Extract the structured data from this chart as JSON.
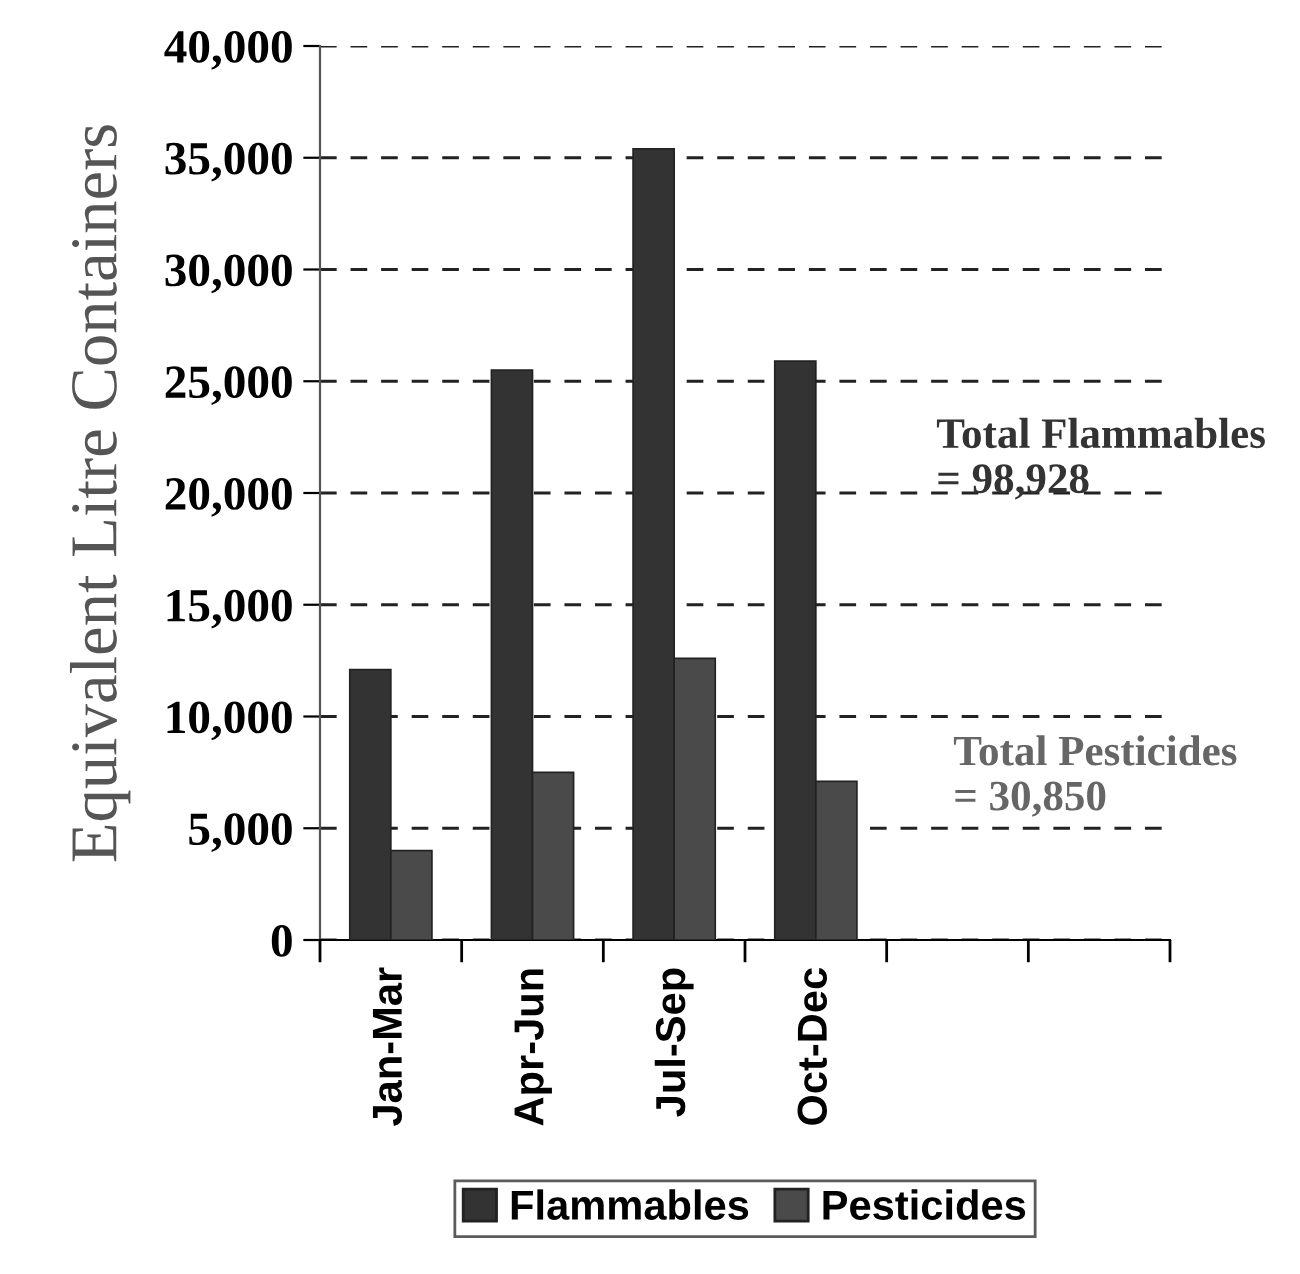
{
  "chart_data": {
    "type": "bar",
    "ylabel": "Equivalent Litre Containers",
    "categories": [
      "Jan-Mar",
      "Apr-Jun",
      "Jul-Sep",
      "Oct-Dec",
      null,
      null
    ],
    "series": [
      {
        "name": "Flammables",
        "color": "#333333",
        "values": [
          12100,
          25500,
          35400,
          25900,
          null,
          null
        ]
      },
      {
        "name": "Pesticides",
        "color": "#4a4a4a",
        "values": [
          4000,
          7500,
          12600,
          7100,
          null,
          null
        ]
      }
    ],
    "ylim": [
      0,
      40000
    ],
    "yticks": [
      {
        "value": 0,
        "label": "0"
      },
      {
        "value": 5000,
        "label": "5,000"
      },
      {
        "value": 10000,
        "label": "10,000"
      },
      {
        "value": 15000,
        "label": "15,000"
      },
      {
        "value": 20000,
        "label": "20,000"
      },
      {
        "value": 25000,
        "label": "25,000"
      },
      {
        "value": 30000,
        "label": "30,000"
      },
      {
        "value": 35000,
        "label": "35,000"
      },
      {
        "value": 40000,
        "label": "40,000"
      }
    ],
    "annotations": [
      "Total Flammables\n= 98,928",
      "Total Pesticides\n= 30,850"
    ],
    "grid": "y",
    "legend": "bottom"
  }
}
